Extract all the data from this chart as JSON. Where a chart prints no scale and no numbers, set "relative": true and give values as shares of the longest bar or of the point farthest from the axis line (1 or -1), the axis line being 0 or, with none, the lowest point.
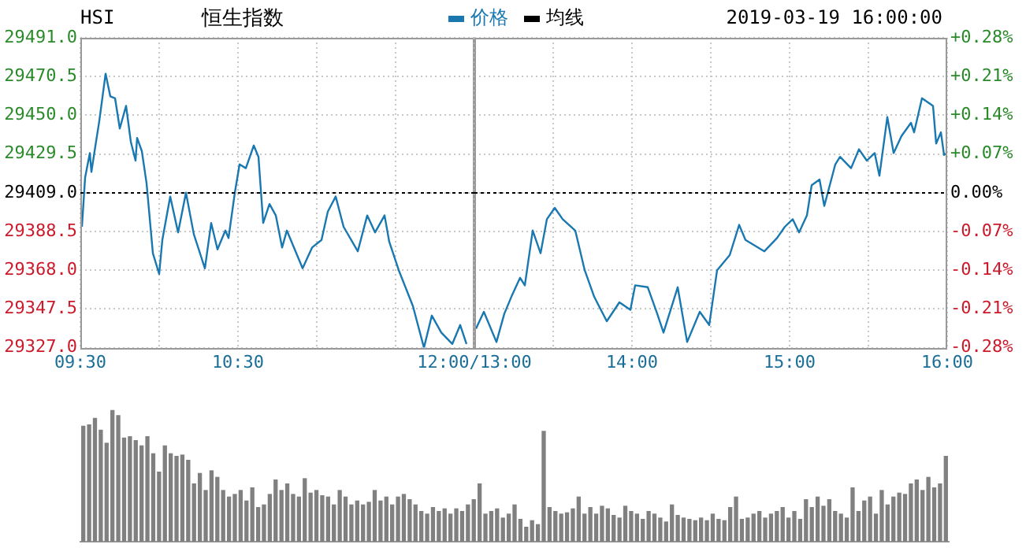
{
  "chart_data": [
    {
      "type": "line",
      "title": "恒生指数",
      "annotations": [
        "HSI"
      ],
      "legend": "top",
      "grid": true,
      "marker": "none",
      "xlim": [
        9.5,
        12
      ],
      "xticks": [
        {
          "value": 9.5,
          "label": "09:30"
        },
        {
          "value": 10,
          "label": null
        },
        {
          "value": 10.5,
          "label": "10:30"
        },
        {
          "value": 11,
          "label": null
        },
        {
          "value": 11.5,
          "label": null
        },
        {
          "value": 12,
          "label": "12:00/13:00"
        }
      ],
      "ylim": [
        29327,
        29491
      ],
      "yticks": [
        {
          "value": 29327,
          "label": "29327.0"
        },
        {
          "value": 29347.5,
          "label": "29347.5"
        },
        {
          "value": 29368,
          "label": "29368.0"
        },
        {
          "value": 29388.5,
          "label": "29388.5"
        },
        {
          "value": 29409,
          "label": "29409.0"
        },
        {
          "value": 29429.5,
          "label": "29429.5"
        },
        {
          "value": 29450,
          "label": "29450.0"
        },
        {
          "value": 29470.5,
          "label": "29470.5"
        },
        {
          "value": 29491,
          "label": "29491.0"
        }
      ],
      "ref_lines": [
        {
          "axis": "y",
          "value": 29409,
          "color": "#000000",
          "line_style": "dashed"
        }
      ],
      "series": [
        {
          "name": "价格",
          "color": "#1a78b0",
          "x": [
            9.51,
            9.53,
            9.56,
            9.57,
            9.59,
            9.62,
            9.66,
            9.69,
            9.72,
            9.75,
            9.79,
            9.82,
            9.85,
            9.86,
            9.89,
            9.92,
            9.96,
            10,
            10.02,
            10.07,
            10.12,
            10.17,
            10.22,
            10.29,
            10.33,
            10.37,
            10.42,
            10.44,
            10.48,
            10.51,
            10.55,
            10.6,
            10.63,
            10.66,
            10.7,
            10.74,
            10.78,
            10.81,
            10.91,
            10.97,
            11.03,
            11.07,
            11.12,
            11.17,
            11.26,
            11.32,
            11.37,
            11.43,
            11.46,
            11.52,
            11.61,
            11.68,
            11.73,
            11.79,
            11.86,
            11.91,
            11.95
          ],
          "values": [
            29391,
            29417,
            29430,
            29420,
            29431,
            29447,
            29472,
            29460,
            29459,
            29443,
            29455,
            29436,
            29426,
            29438,
            29431,
            29414,
            29377,
            29366,
            29384,
            29407,
            29388,
            29409,
            29387,
            29369,
            29393,
            29379,
            29389,
            29385,
            29409,
            29424,
            29422,
            29434,
            29428,
            29393,
            29403,
            29397,
            29380,
            29389,
            29369,
            29380,
            29384,
            29399,
            29407,
            29391,
            29378,
            29397,
            29388,
            29397,
            29383,
            29368,
            29349,
            29327,
            29344,
            29335,
            29329,
            29339,
            29329
          ]
        },
        {
          "name": "均线",
          "color": "#000000"
        }
      ]
    },
    {
      "type": "line",
      "annotations": [
        "2019-03-19 16:00:00"
      ],
      "grid": true,
      "marker": "none",
      "xlim": [
        13,
        16
      ],
      "xticks": [
        {
          "value": 13,
          "label": null
        },
        {
          "value": 13.5,
          "label": null
        },
        {
          "value": 14,
          "label": "14:00"
        },
        {
          "value": 14.5,
          "label": null
        },
        {
          "value": 15,
          "label": "15:00"
        },
        {
          "value": 15.5,
          "label": null
        },
        {
          "value": 16,
          "label": "16:00"
        }
      ],
      "ylim": [
        29327,
        29491
      ],
      "y2lim": [
        -0.28,
        0.28
      ],
      "y2ticks": [
        {
          "value": -0.28,
          "label": "-0.28%"
        },
        {
          "value": -0.21,
          "label": "-0.21%"
        },
        {
          "value": -0.14,
          "label": "-0.14%"
        },
        {
          "value": -0.07,
          "label": "-0.07%"
        },
        {
          "value": 0,
          "label": "0.00%"
        },
        {
          "value": 0.07,
          "label": "+0.07%"
        },
        {
          "value": 0.14,
          "label": "+0.14%"
        },
        {
          "value": 0.21,
          "label": "+0.21%"
        },
        {
          "value": 0.28,
          "label": "+0.28%"
        }
      ],
      "ref_lines": [
        {
          "axis": "y",
          "value": 29409,
          "color": "#000000",
          "line_style": "dashed"
        }
      ],
      "series": [
        {
          "color": "#1a78b0",
          "x": [
            13.01,
            13.06,
            13.14,
            13.19,
            13.24,
            13.29,
            13.32,
            13.37,
            13.42,
            13.46,
            13.51,
            13.56,
            13.64,
            13.7,
            13.76,
            13.84,
            13.92,
            13.99,
            14.02,
            14.1,
            14.16,
            14.2,
            14.29,
            14.35,
            14.43,
            14.49,
            14.54,
            14.62,
            14.68,
            14.72,
            14.84,
            14.92,
            14.97,
            15.02,
            15.06,
            15.11,
            15.14,
            15.19,
            15.22,
            15.29,
            15.32,
            15.39,
            15.44,
            15.49,
            15.54,
            15.57,
            15.62,
            15.66,
            15.71,
            15.77,
            15.79,
            15.84,
            15.91,
            15.93,
            15.96,
            15.98,
            16
          ],
          "values": [
            29337,
            29346,
            29330,
            29345,
            29355,
            29364,
            29360,
            29389,
            29377,
            29395,
            29401,
            29395,
            29389,
            29368,
            29354,
            29341,
            29351,
            29347,
            29360,
            29359,
            29345,
            29335,
            29359,
            29330,
            29346,
            29339,
            29368,
            29376,
            29392,
            29384,
            29378,
            29385,
            29391,
            29395,
            29388,
            29397,
            29413,
            29416,
            29402,
            29424,
            29428,
            29422,
            29432,
            29426,
            29430,
            29418,
            29449,
            29430,
            29439,
            29446,
            29441,
            29459,
            29455,
            29435,
            29441,
            29429,
            29430
          ]
        }
      ]
    },
    {
      "type": "bar",
      "relative": true,
      "tick_labels": false,
      "color": "#808080",
      "categories": [
        null,
        null,
        null,
        null,
        null,
        null,
        null,
        null,
        null,
        null,
        null,
        null,
        null,
        null,
        null,
        null,
        null,
        null,
        null,
        null,
        null,
        null,
        null,
        null,
        null,
        null,
        null,
        null,
        null,
        null,
        null,
        null,
        null,
        null,
        null,
        null,
        null,
        null,
        null,
        null,
        null,
        null,
        null,
        null,
        null,
        null,
        null,
        null,
        null,
        null,
        null,
        null,
        null,
        null,
        null,
        null,
        null,
        null,
        null,
        null,
        null,
        null,
        null,
        null,
        null,
        null,
        null,
        null,
        null,
        null,
        null,
        null,
        null,
        null,
        null,
        null,
        null,
        null,
        null,
        null,
        null,
        null,
        null,
        null,
        null,
        null,
        null,
        null,
        null,
        null,
        null,
        null,
        null,
        null,
        null,
        null,
        null,
        null,
        null,
        null,
        null,
        null,
        null,
        null,
        null,
        null,
        null,
        null,
        null,
        null,
        null,
        null,
        null,
        null,
        null,
        null,
        null,
        null,
        null,
        null,
        null,
        null,
        null,
        null,
        null,
        null,
        null,
        null,
        null,
        null,
        null,
        null,
        null,
        null,
        null,
        null,
        null,
        null,
        null,
        null,
        null,
        null,
        null,
        null,
        null,
        null,
        null,
        null,
        null
      ],
      "values": [
        0.88,
        0.89,
        0.94,
        0.85,
        0.75,
        1,
        0.96,
        0.79,
        0.8,
        0.77,
        0.73,
        0.8,
        0.67,
        0.53,
        0.73,
        0.67,
        0.65,
        0.66,
        0.62,
        0.44,
        0.52,
        0.39,
        0.54,
        0.49,
        0.39,
        0.34,
        0.36,
        0.39,
        0.31,
        0.41,
        0.26,
        0.28,
        0.36,
        0.47,
        0.39,
        0.44,
        0.36,
        0.34,
        0.48,
        0.37,
        0.39,
        0.35,
        0.34,
        0.28,
        0.39,
        0.34,
        0.28,
        0.31,
        0.28,
        0.3,
        0.39,
        0.31,
        0.34,
        0.28,
        0.34,
        0.36,
        0.32,
        0.28,
        0.23,
        0.21,
        0.26,
        0.23,
        0.25,
        0.21,
        0.25,
        0.23,
        0.28,
        0.32,
        0.44,
        0.21,
        0.23,
        0.25,
        0.18,
        0.21,
        0.28,
        0.17,
        0.11,
        0.16,
        0.13,
        0.84,
        0.26,
        0.23,
        0.21,
        0.22,
        0.25,
        0.34,
        0.21,
        0.26,
        0.21,
        0.27,
        0.25,
        0.2,
        0.18,
        0.27,
        0.23,
        0.21,
        0.17,
        0.23,
        0.21,
        0.18,
        0.15,
        0.28,
        0.2,
        0.18,
        0.17,
        0.16,
        0.18,
        0.16,
        0.21,
        0.17,
        0.16,
        0.26,
        0.34,
        0.17,
        0.18,
        0.21,
        0.23,
        0.18,
        0.21,
        0.23,
        0.26,
        0.18,
        0.23,
        0.17,
        0.32,
        0.26,
        0.34,
        0.27,
        0.32,
        0.23,
        0.21,
        0.18,
        0.41,
        0.23,
        0.31,
        0.34,
        0.21,
        0.39,
        0.28,
        0.34,
        0.37,
        0.36,
        0.44,
        0.47,
        0.39,
        0.49,
        0.41,
        0.44,
        0.65
      ]
    }
  ]
}
